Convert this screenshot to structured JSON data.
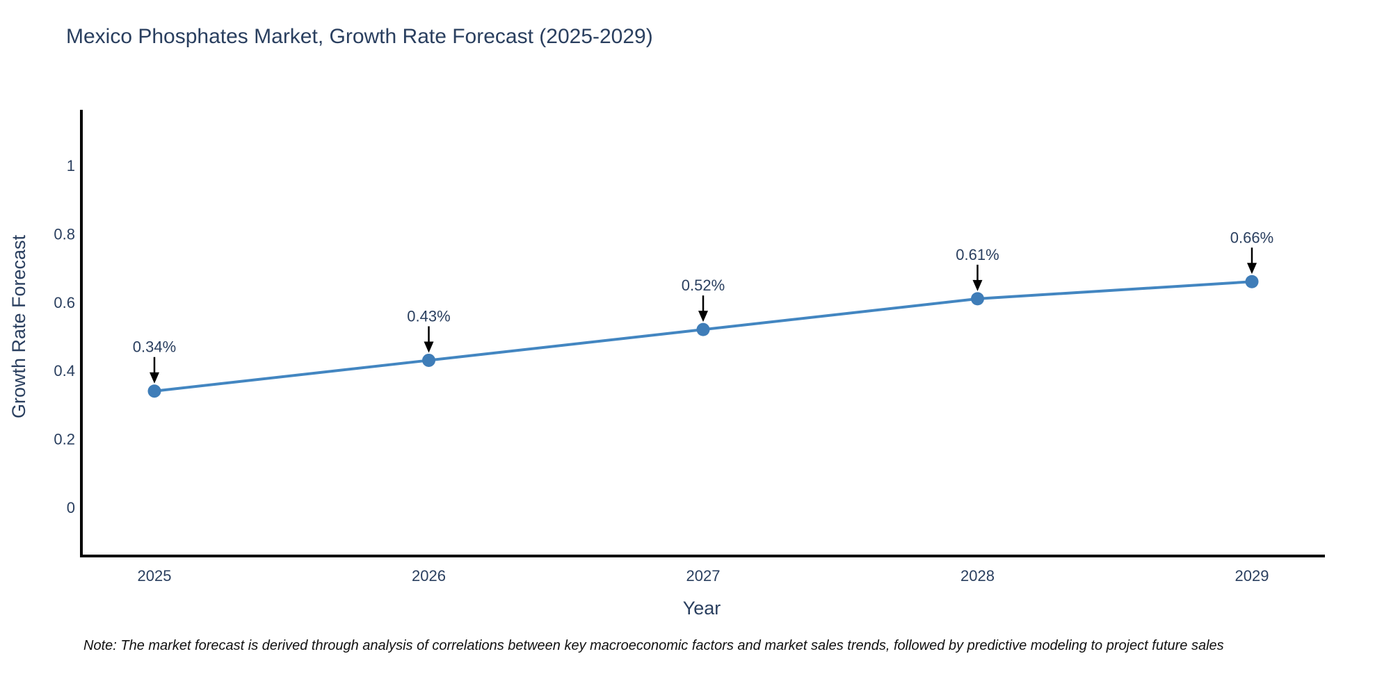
{
  "title": "Mexico Phosphates Market, Growth Rate Forecast (2025-2029)",
  "note": "Note: The market forecast is derived through analysis of correlations between key macroeconomic factors and market sales trends, followed by predictive modeling to project future sales",
  "colors": {
    "line": "#4386c1",
    "marker": "#3f7db8",
    "text": "#2a3f5f",
    "axis": "#000000",
    "arrow": "#000000"
  },
  "chart_data": {
    "type": "line",
    "title": "Mexico Phosphates Market, Growth Rate Forecast (2025-2029)",
    "x": [
      2025,
      2026,
      2027,
      2028,
      2029
    ],
    "xtick_labels": [
      "2025",
      "2026",
      "2027",
      "2028",
      "2029"
    ],
    "values": [
      0.34,
      0.43,
      0.52,
      0.61,
      0.66
    ],
    "point_labels": [
      "0.34%",
      "0.43%",
      "0.52%",
      "0.61%",
      "0.66%"
    ],
    "xlabel": "Year",
    "ylabel": "Growth Rate Forecast",
    "yticks": [
      0,
      0.2,
      0.4,
      0.6,
      0.8,
      1
    ],
    "ytick_labels": [
      "0",
      "0.2",
      "0.4",
      "0.6",
      "0.8",
      "1"
    ],
    "ylim": [
      -0.14,
      1.17
    ],
    "grid": false,
    "legend": "none",
    "annotations": "value labels with down arrows above each data point"
  }
}
